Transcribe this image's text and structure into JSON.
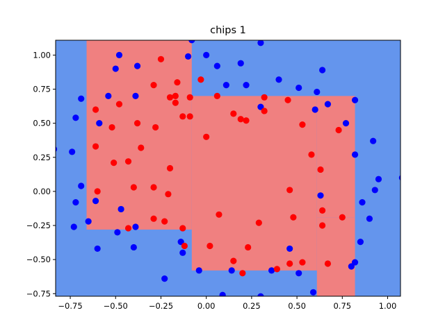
{
  "chart_data": {
    "type": "scatter",
    "title": "chips 1",
    "xlabel": "",
    "ylabel": "",
    "xlim": [
      -0.8307,
      1.0709
    ],
    "ylim": [
      -0.769,
      1.1089
    ],
    "grid": false,
    "x_ticks": [
      -0.75,
      -0.5,
      -0.25,
      0.0,
      0.25,
      0.5,
      0.75,
      1.0
    ],
    "x_tick_labels": [
      "−0.75",
      "−0.50",
      "−0.25",
      "0.00",
      "0.25",
      "0.50",
      "0.75",
      "1.00"
    ],
    "y_ticks": [
      -0.75,
      -0.5,
      -0.25,
      0.0,
      0.25,
      0.5,
      0.75,
      1.0
    ],
    "y_tick_labels": [
      "−0.75",
      "−0.50",
      "−0.25",
      "0.00",
      "0.25",
      "0.50",
      "0.75",
      "1.00"
    ],
    "colors": {
      "background_region": "#6495ed",
      "decision_region": "#f08080",
      "class_0": "#0000ff",
      "class_1": "#ff0000"
    },
    "decision_regions": [
      {
        "class": 1,
        "x": [
          -0.66,
          -0.08
        ],
        "y": [
          -0.28,
          1.12
        ]
      },
      {
        "class": 1,
        "x": [
          -0.08,
          0.61
        ],
        "y": [
          -0.58,
          0.7
        ]
      },
      {
        "class": 1,
        "x": [
          0.61,
          0.82
        ],
        "y": [
          -0.77,
          -0.19
        ]
      },
      {
        "class": 1,
        "x": [
          0.61,
          0.82
        ],
        "y": [
          -0.19,
          0.7
        ]
      }
    ],
    "series": [
      {
        "class": 0,
        "color": "#0000ff",
        "points": [
          [
            -0.84,
            0.31
          ],
          [
            -0.74,
            0.29
          ],
          [
            -0.72,
            0.54
          ],
          [
            -0.69,
            0.68
          ],
          [
            -0.69,
            0.04
          ],
          [
            -0.72,
            -0.08
          ],
          [
            -0.73,
            -0.26
          ],
          [
            -0.65,
            -0.22
          ],
          [
            -0.6,
            -0.42
          ],
          [
            -0.61,
            -0.07
          ],
          [
            -0.59,
            0.5
          ],
          [
            -0.54,
            0.7
          ],
          [
            -0.5,
            0.9
          ],
          [
            -0.48,
            1.0
          ],
          [
            -0.38,
            0.92
          ],
          [
            -0.39,
            0.7
          ],
          [
            -0.47,
            -0.13
          ],
          [
            -0.49,
            -0.3
          ],
          [
            -0.39,
            -0.26
          ],
          [
            -0.4,
            -0.41
          ],
          [
            -0.23,
            -0.64
          ],
          [
            -0.14,
            -0.37
          ],
          [
            -0.13,
            -0.45
          ],
          [
            -0.1,
            0.99
          ],
          [
            -0.08,
            1.11
          ],
          [
            0.0,
            1.0
          ],
          [
            0.06,
            0.92
          ],
          [
            0.11,
            0.78
          ],
          [
            0.19,
            0.94
          ],
          [
            0.22,
            0.78
          ],
          [
            0.3,
            1.09
          ],
          [
            0.3,
            0.62
          ],
          [
            0.4,
            0.82
          ],
          [
            0.51,
            0.76
          ],
          [
            0.6,
            0.6
          ],
          [
            0.61,
            0.73
          ],
          [
            0.64,
            0.89
          ],
          [
            0.67,
            0.64
          ],
          [
            0.77,
            0.5
          ],
          [
            0.82,
            0.67
          ],
          [
            0.82,
            0.27
          ],
          [
            0.92,
            0.37
          ],
          [
            0.95,
            0.09
          ],
          [
            0.93,
            0.01
          ],
          [
            1.08,
            0.1
          ],
          [
            0.63,
            -0.03
          ],
          [
            0.86,
            -0.08
          ],
          [
            0.9,
            -0.2
          ],
          [
            0.85,
            -0.37
          ],
          [
            0.82,
            -0.52
          ],
          [
            0.8,
            -0.55
          ],
          [
            0.59,
            -0.74
          ],
          [
            0.51,
            -0.6
          ],
          [
            0.46,
            -0.42
          ],
          [
            0.36,
            -0.58
          ],
          [
            0.3,
            -0.77
          ],
          [
            0.09,
            -0.76
          ],
          [
            0.14,
            -0.58
          ],
          [
            -0.04,
            -0.58
          ]
        ]
      },
      {
        "class": 1,
        "color": "#ff0000",
        "points": [
          [
            -0.61,
            0.6
          ],
          [
            -0.48,
            0.64
          ],
          [
            -0.52,
            0.47
          ],
          [
            -0.61,
            0.33
          ],
          [
            -0.6,
            0.0
          ],
          [
            -0.51,
            0.21
          ],
          [
            -0.43,
            0.22
          ],
          [
            -0.4,
            0.03
          ],
          [
            -0.36,
            0.32
          ],
          [
            -0.38,
            0.5
          ],
          [
            -0.43,
            -0.27
          ],
          [
            -0.29,
            0.78
          ],
          [
            -0.25,
            0.97
          ],
          [
            -0.28,
            0.47
          ],
          [
            -0.2,
            0.69
          ],
          [
            -0.16,
            0.8
          ],
          [
            -0.17,
            0.7
          ],
          [
            -0.17,
            0.65
          ],
          [
            -0.13,
            0.55
          ],
          [
            -0.09,
            0.69
          ],
          [
            -0.09,
            0.55
          ],
          [
            -0.03,
            0.82
          ],
          [
            -0.2,
            0.17
          ],
          [
            -0.21,
            -0.02
          ],
          [
            -0.29,
            0.03
          ],
          [
            -0.23,
            -0.22
          ],
          [
            -0.29,
            -0.2
          ],
          [
            -0.12,
            -0.4
          ],
          [
            -0.13,
            -0.27
          ],
          [
            0.0,
            0.4
          ],
          [
            0.06,
            0.7
          ],
          [
            0.07,
            -0.17
          ],
          [
            0.02,
            -0.4
          ],
          [
            0.15,
            0.57
          ],
          [
            0.19,
            0.53
          ],
          [
            0.22,
            0.52
          ],
          [
            0.32,
            0.69
          ],
          [
            0.32,
            0.59
          ],
          [
            0.29,
            -0.23
          ],
          [
            0.23,
            -0.41
          ],
          [
            0.15,
            -0.51
          ],
          [
            0.2,
            -0.6
          ],
          [
            0.39,
            -0.57
          ],
          [
            0.45,
            0.67
          ],
          [
            0.46,
            0.01
          ],
          [
            0.48,
            -0.19
          ],
          [
            0.53,
            0.49
          ],
          [
            0.58,
            0.27
          ],
          [
            0.63,
            0.16
          ],
          [
            0.64,
            -0.14
          ],
          [
            0.64,
            -0.25
          ],
          [
            0.73,
            0.45
          ],
          [
            0.75,
            -0.19
          ],
          [
            0.67,
            -0.53
          ],
          [
            0.53,
            -0.52
          ],
          [
            0.46,
            -0.53
          ]
        ]
      }
    ]
  }
}
